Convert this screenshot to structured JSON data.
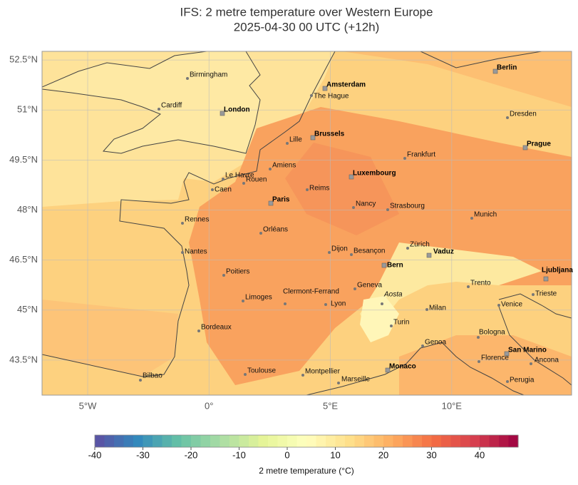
{
  "title": {
    "line1": "IFS: 2 metre temperature over Western Europe",
    "line2": "2025-04-30 00 UTC (+12h)"
  },
  "map": {
    "xlim": [
      -6.88,
      14.94
    ],
    "ylim": [
      42.45,
      52.76
    ],
    "lon_ticks": [
      {
        "value": -5,
        "label": "5°W"
      },
      {
        "value": 0,
        "label": "0°"
      },
      {
        "value": 5,
        "label": "5°E"
      },
      {
        "value": 10,
        "label": "10°E"
      }
    ],
    "lat_ticks": [
      {
        "value": 52.5,
        "label": "52.5°N"
      },
      {
        "value": 51,
        "label": "51°N"
      },
      {
        "value": 49.5,
        "label": "49.5°N"
      },
      {
        "value": 48,
        "label": "48°N"
      },
      {
        "value": 46.5,
        "label": "46.5°N"
      },
      {
        "value": 45,
        "label": "45°N"
      },
      {
        "value": 43.5,
        "label": "43.5°N"
      }
    ],
    "capitals": [
      "London",
      "Amsterdam",
      "Berlin",
      "Brussels",
      "Prague",
      "Luxembourg",
      "Paris",
      "Vaduz",
      "Bern",
      "Ljubljana",
      "San Marino",
      "Monaco"
    ],
    "cities": [
      "Birmingham",
      "Cardiff",
      "The Hague",
      "Dresden",
      "Lille",
      "Frankfurt",
      "Amiens",
      "Le Havre",
      "Rouen",
      "Caen",
      "Reims",
      "Nancy",
      "Strasbourg",
      "Munich",
      "Rennes",
      "Orléans",
      "Zürich",
      "Dijon",
      "Besançon",
      "Nantes",
      "Poitiers",
      "Geneva",
      "Trento",
      "Trieste",
      "Aosta",
      "Limoges",
      "Clermont-Ferrand",
      "Lyon",
      "Milan",
      "Venice",
      "Turin",
      "Bordeaux",
      "Bologna",
      "Genoa",
      "Florence",
      "Ancona",
      "Toulouse",
      "Montpellier",
      "Bilbao",
      "Marseille",
      "Perugia"
    ]
  },
  "colorbar": {
    "label": "2 metre temperature (°C)",
    "range": [
      -40,
      48
    ],
    "ticks": [
      -40,
      -30,
      -20,
      -10,
      0,
      10,
      20,
      30,
      40
    ]
  }
}
